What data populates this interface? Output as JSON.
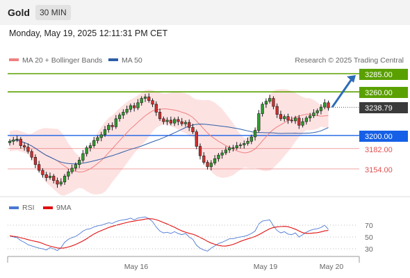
{
  "header": {
    "asset": "Gold",
    "timeframe": "30 MIN",
    "datetime": "Monday, May 19, 2025 12:11:31 PM CET"
  },
  "legend": {
    "ma20_label": "MA 20 + Bollinger Bands",
    "ma50_label": "MA 50",
    "copyright": "Research © 2025 Trading Central",
    "ma20_color": "#f08080",
    "ma50_color": "#2d5ea8"
  },
  "price_levels": {
    "resistance_2": "3285.00",
    "resistance_1": "3260.00",
    "last_price": "3238.79",
    "pivot": "3200.00",
    "support_1": "3182.00",
    "support_2": "3154.00",
    "resistance_color": "#5aa000",
    "pivot_color": "#1560e6",
    "support_color": "#e05050"
  },
  "rsi_panel": {
    "rsi_label": "RSI",
    "ma9_label": "9MA",
    "rsi_color": "#4a78d4",
    "ma9_color": "#e01010",
    "ticks": [
      "70",
      "50",
      "30"
    ]
  },
  "x_axis": {
    "labels": [
      "May 16",
      "May 19",
      "May 20"
    ]
  },
  "chart_data": {
    "type": "candlestick",
    "title": "Gold",
    "timeframe": "30 MIN",
    "y_range": [
      3125,
      3302
    ],
    "horizontal_levels": [
      {
        "value": 3285.0,
        "kind": "resistance"
      },
      {
        "value": 3260.0,
        "kind": "resistance"
      },
      {
        "value": 3238.79,
        "kind": "last"
      },
      {
        "value": 3200.0,
        "kind": "pivot"
      },
      {
        "value": 3182.0,
        "kind": "support"
      },
      {
        "value": 3154.0,
        "kind": "support"
      }
    ],
    "forecast_arrow": {
      "from": 3238.79,
      "to": 3285.0
    },
    "closes": [
      3192,
      3194,
      3195,
      3186,
      3184,
      3178,
      3170,
      3160,
      3152,
      3146,
      3142,
      3144,
      3138,
      3133,
      3136,
      3144,
      3150,
      3155,
      3160,
      3166,
      3175,
      3183,
      3186,
      3193,
      3197,
      3201,
      3208,
      3214,
      3212,
      3223,
      3228,
      3232,
      3236,
      3241,
      3238,
      3245,
      3251,
      3253,
      3248,
      3243,
      3232,
      3223,
      3219,
      3221,
      3217,
      3222,
      3219,
      3216,
      3218,
      3211,
      3205,
      3185,
      3172,
      3163,
      3157,
      3162,
      3168,
      3173,
      3176,
      3180,
      3183,
      3183,
      3186,
      3187,
      3189,
      3192,
      3198,
      3207,
      3230,
      3243,
      3247,
      3251,
      3240,
      3229,
      3223,
      3226,
      3221,
      3220,
      3224,
      3214,
      3219,
      3224,
      3227,
      3231,
      3234,
      3239,
      3245,
      3238
    ],
    "rsi": [
      52,
      50,
      49,
      44,
      41,
      37,
      35,
      33,
      31,
      30,
      28,
      32,
      30,
      27,
      32,
      41,
      46,
      49,
      51,
      55,
      60,
      63,
      64,
      67,
      69,
      70,
      72,
      74,
      73,
      76,
      78,
      79,
      80,
      82,
      79,
      82,
      83,
      84,
      81,
      76,
      67,
      60,
      57,
      58,
      56,
      59,
      56,
      54,
      56,
      50,
      46,
      36,
      31,
      28,
      26,
      31,
      35,
      39,
      41,
      44,
      47,
      47,
      49,
      50,
      51,
      53,
      56,
      60,
      72,
      77,
      78,
      79,
      69,
      61,
      57,
      59,
      55,
      54,
      57,
      50,
      54,
      58,
      61,
      63,
      64,
      66,
      70,
      63
    ],
    "rsi_ticks": [
      70,
      50,
      30
    ],
    "x_labels": [
      "May 16",
      "May 19",
      "May 20"
    ],
    "legend": [
      "MA 20 + Bollinger Bands",
      "MA 50",
      "RSI",
      "9MA"
    ]
  }
}
